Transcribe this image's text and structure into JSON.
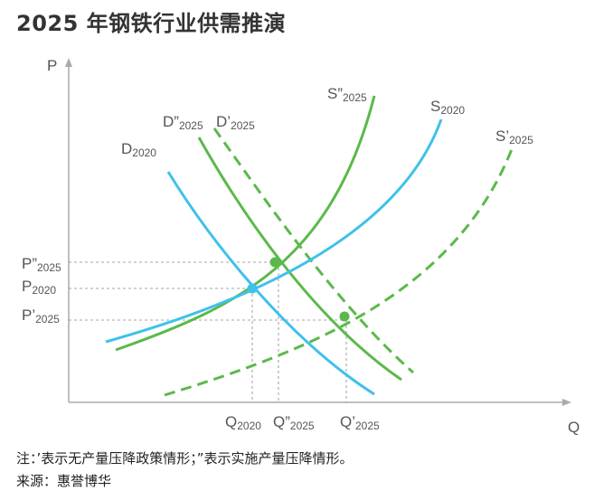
{
  "title": "2025 年钢铁行业供需推演",
  "chart_data": {
    "type": "line",
    "x_axis_label": "Q",
    "y_axis_label": "P",
    "curves": [
      {
        "main": "D",
        "sub": "2020",
        "kind": "demand",
        "color": "#3fc1ea",
        "style": "solid"
      },
      {
        "main": "D”",
        "sub": "2025",
        "kind": "demand",
        "color": "#5bb94a",
        "style": "solid"
      },
      {
        "main": "D’",
        "sub": "2025",
        "kind": "demand",
        "color": "#5bb94a",
        "style": "dashed"
      },
      {
        "main": "S”",
        "sub": "2025",
        "kind": "supply",
        "color": "#5bb94a",
        "style": "solid"
      },
      {
        "main": "S",
        "sub": "2020",
        "kind": "supply",
        "color": "#3fc1ea",
        "style": "solid"
      },
      {
        "main": "S’",
        "sub": "2025",
        "kind": "supply",
        "color": "#5bb94a",
        "style": "dashed"
      }
    ],
    "price_ticks": [
      {
        "main": "P”",
        "sub": "2025"
      },
      {
        "main": "P",
        "sub": "2020"
      },
      {
        "main": "P’",
        "sub": "2025"
      }
    ],
    "quantity_ticks": [
      {
        "main": "Q",
        "sub": "2020"
      },
      {
        "main": "Q”",
        "sub": "2025"
      },
      {
        "main": "Q’",
        "sub": "2025"
      }
    ],
    "equilibria": [
      {
        "name": "E2020",
        "color": "#3fc1ea"
      },
      {
        "name": "E”2025",
        "color": "#5bb94a"
      },
      {
        "name": "E’2025",
        "color": "#5bb94a"
      }
    ],
    "grid": false
  },
  "footnote": "注：’表示无产量压降政策情形；”表示实施产量压降情形。",
  "source": "来源：惠誉博华"
}
